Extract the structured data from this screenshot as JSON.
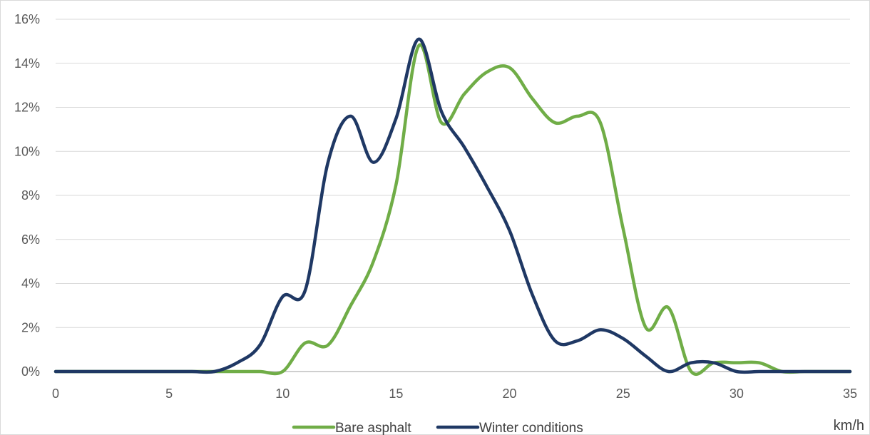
{
  "chart_data": {
    "type": "line",
    "title": "",
    "xlabel": "km/h",
    "ylabel": "",
    "xlim": [
      0,
      35
    ],
    "ylim": [
      0,
      16
    ],
    "x_ticks": [
      0,
      5,
      10,
      15,
      20,
      25,
      30,
      35
    ],
    "x_tick_labels": [
      "0",
      "5",
      "10",
      "15",
      "20",
      "25",
      "30",
      "35"
    ],
    "y_ticks": [
      0,
      2,
      4,
      6,
      8,
      10,
      12,
      14,
      16
    ],
    "y_tick_labels": [
      "0%",
      "2%",
      "4%",
      "6%",
      "8%",
      "10%",
      "12%",
      "14%",
      "16%"
    ],
    "y_unit": "%",
    "grid": "horizontal",
    "legend_position": "bottom",
    "smooth": true,
    "x": [
      0,
      1,
      2,
      3,
      4,
      5,
      6,
      7,
      8,
      9,
      10,
      11,
      12,
      13,
      14,
      15,
      16,
      17,
      18,
      19,
      20,
      21,
      22,
      23,
      24,
      25,
      26,
      27,
      28,
      29,
      30,
      31,
      32,
      33,
      34,
      35
    ],
    "series": [
      {
        "name": "Bare asphalt",
        "color": "#70ad47",
        "values": [
          0,
          0,
          0,
          0,
          0,
          0,
          0,
          0,
          0,
          0,
          0,
          1.3,
          1.2,
          3.0,
          5.0,
          8.5,
          14.8,
          11.3,
          12.6,
          13.6,
          13.8,
          12.4,
          11.3,
          11.6,
          11.3,
          6.5,
          2.0,
          2.9,
          0,
          0.4,
          0.4,
          0.4,
          0,
          0,
          0,
          0
        ]
      },
      {
        "name": "Winter conditions",
        "color": "#1f3864",
        "values": [
          0,
          0,
          0,
          0,
          0,
          0,
          0,
          0,
          0.4,
          1.2,
          3.4,
          3.7,
          9.5,
          11.6,
          9.5,
          11.5,
          15.1,
          11.8,
          10.2,
          8.4,
          6.4,
          3.5,
          1.4,
          1.4,
          1.9,
          1.5,
          0.7,
          0,
          0.4,
          0.4,
          0,
          0,
          0,
          0,
          0,
          0
        ]
      }
    ]
  }
}
